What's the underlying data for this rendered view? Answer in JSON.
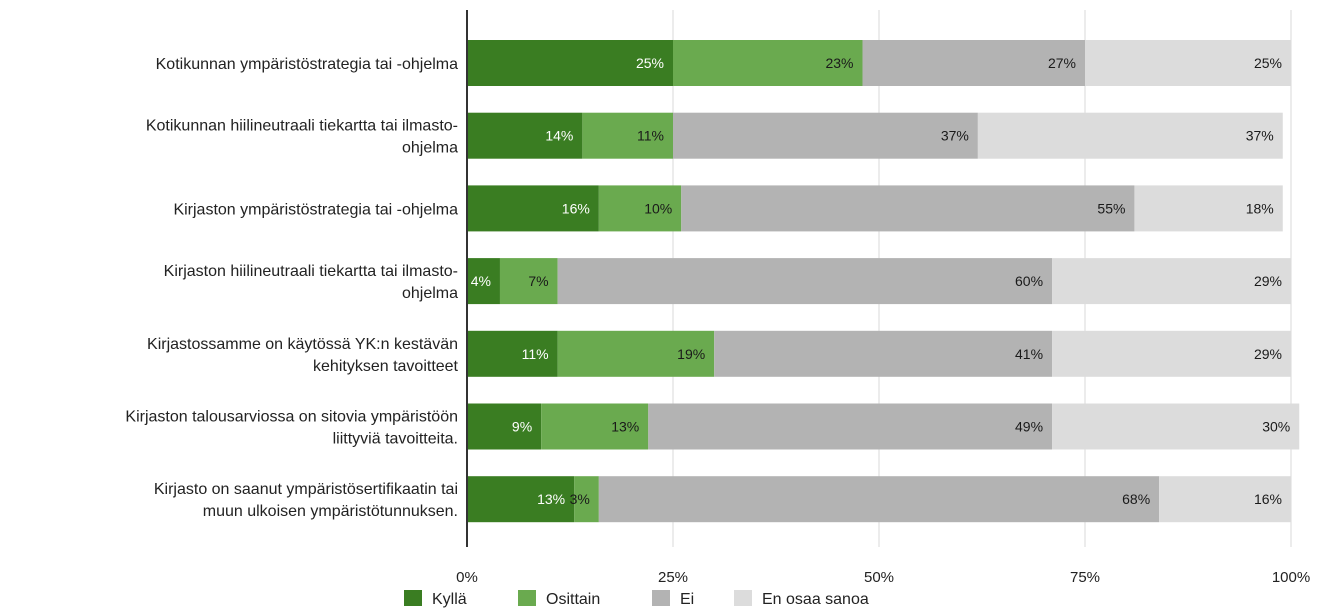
{
  "chart_data": {
    "type": "bar",
    "orientation": "horizontal",
    "stacked": true,
    "percent_stacked": true,
    "categories": [
      [
        "Kotikunnan ympäristöstrategia tai -ohjelma"
      ],
      [
        "Kotikunnan hiilineutraali tiekartta tai ilmasto-",
        "ohjelma"
      ],
      [
        "Kirjaston ympäristöstrategia tai -ohjelma"
      ],
      [
        "Kirjaston hiilineutraali tiekartta tai ilmasto-",
        "ohjelma"
      ],
      [
        "Kirjastossamme on käytössä YK:n kestävän",
        "kehityksen tavoitteet"
      ],
      [
        "Kirjaston talousarviossa on sitovia ympäristöön",
        "liittyviä tavoitteita."
      ],
      [
        "Kirjasto on saanut ympäristösertifikaatin tai",
        "muun ulkoisen ympäristötunnuksen."
      ]
    ],
    "series": [
      {
        "name": "Kyllä",
        "color": "#3a7d22",
        "label_color": "#ffffff",
        "values": [
          25,
          14,
          16,
          4,
          11,
          9,
          13
        ]
      },
      {
        "name": "Osittain",
        "color": "#6aaa4f",
        "label_color": "#1a1a1a",
        "values": [
          23,
          11,
          10,
          7,
          19,
          13,
          3
        ]
      },
      {
        "name": "Ei",
        "color": "#b3b3b3",
        "label_color": "#1a1a1a",
        "values": [
          27,
          37,
          55,
          60,
          41,
          49,
          68
        ]
      },
      {
        "name": "En osaa sanoa",
        "color": "#dcdcdc",
        "label_color": "#1a1a1a",
        "values": [
          25,
          37,
          18,
          29,
          29,
          30,
          16
        ]
      }
    ],
    "data_labels": [
      [
        "25%",
        "23%",
        "27%",
        "25%"
      ],
      [
        "14%",
        "11%",
        "37%",
        "37%"
      ],
      [
        "16%",
        "10%",
        "55%",
        "18%"
      ],
      [
        "4%",
        "7%",
        "60%",
        "29%"
      ],
      [
        "11%",
        "19%",
        "41%",
        "29%"
      ],
      [
        "9%",
        "13%",
        "49%",
        "30%"
      ],
      [
        "13%",
        "3%",
        "68%",
        "16%"
      ]
    ],
    "xlim": [
      0,
      100
    ],
    "x_ticks": [
      0,
      25,
      50,
      75,
      100
    ],
    "x_tick_labels": [
      "0%",
      "25%",
      "50%",
      "75%",
      "100%"
    ],
    "grid": true,
    "legend_position": "bottom",
    "title": "",
    "xlabel": "",
    "ylabel": ""
  }
}
